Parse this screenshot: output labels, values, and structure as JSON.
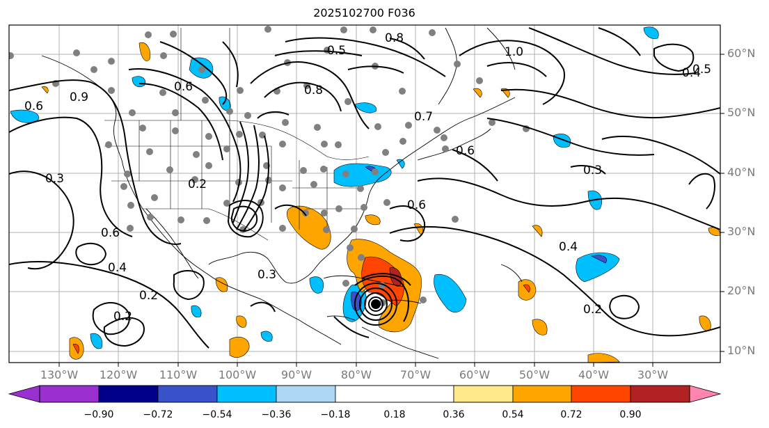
{
  "title": "2025102700 F036",
  "map": {
    "lat_labels": [
      "60°N",
      "50°N",
      "40°N",
      "30°N",
      "20°N",
      "10°N"
    ],
    "lon_labels": [
      "130°W",
      "120°W",
      "110°W",
      "100°W",
      "90°W",
      "80°W",
      "70°W",
      "60°W",
      "50°W",
      "40°W",
      "30°W"
    ]
  },
  "contour_labels": [
    "1.0",
    "0.8",
    "0.5",
    "0.4",
    "0.6",
    "0.3",
    "0.2",
    "0.4",
    "0.6",
    "0.3",
    "0.2",
    "0.6",
    "0.4",
    "0.3",
    "0.2",
    "0.2",
    "0.5",
    "0.6",
    "0.7",
    "0.8",
    "0.9",
    "0.6"
  ],
  "colorbar": {
    "ticks": [
      "−0.90",
      "−0.72",
      "−0.54",
      "−0.36",
      "−0.18",
      "0.18",
      "0.36",
      "0.54",
      "0.72",
      "0.90"
    ],
    "colors": [
      "#9b30d0",
      "#00008b",
      "#3a52c9",
      "#00bfff",
      "#add8f5",
      "#ffffff",
      "#ffe98a",
      "#ffa500",
      "#ff4500",
      "#b22222",
      "#ff85b0"
    ]
  }
}
